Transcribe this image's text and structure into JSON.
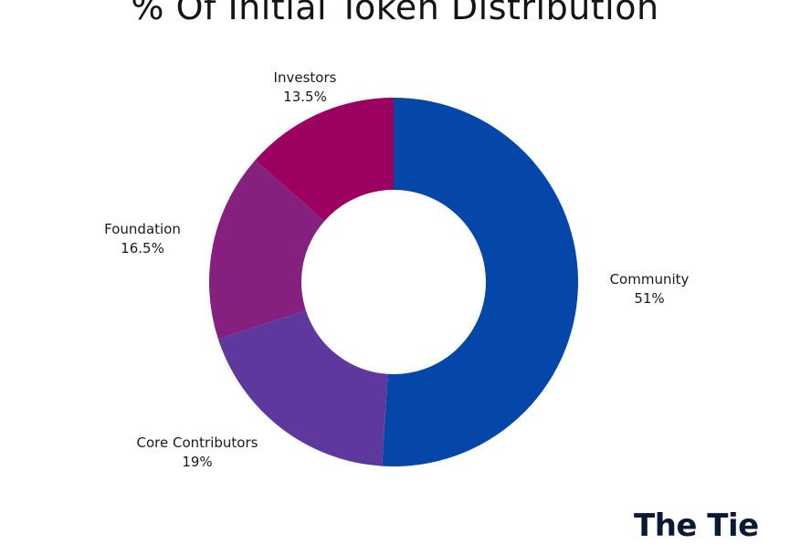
{
  "chart_data": {
    "type": "pie",
    "title": "% Of Initial Token Distribution",
    "donut": true,
    "slices": [
      {
        "label": "Community",
        "value": 51,
        "value_label": "51%",
        "color": "#0447A8"
      },
      {
        "label": "Core Contributors",
        "value": 19,
        "value_label": "19%",
        "color": "#5E389D"
      },
      {
        "label": "Foundation",
        "value": 16.5,
        "value_label": "16.5%",
        "color": "#86207F"
      },
      {
        "label": "Investors",
        "value": 13.5,
        "value_label": "13.5%",
        "color": "#9C0060"
      }
    ]
  },
  "branding": {
    "logo_text": "The Tie"
  }
}
